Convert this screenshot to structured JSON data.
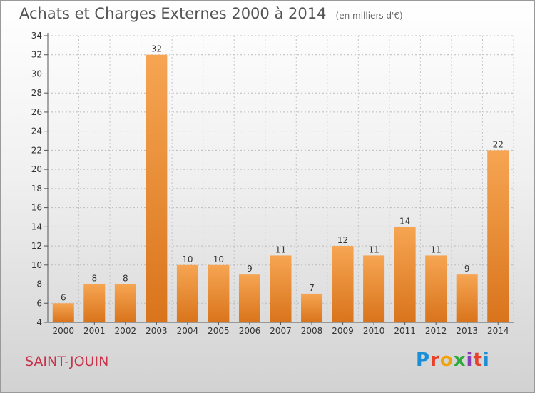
{
  "page": {
    "title": "Achats et Charges Externes 2000 à 2014",
    "subtitle": "(en milliers d'€)",
    "commune": "SAINT-JOUIN",
    "logo_text": "Proxiti",
    "logo_colors": [
      "#1b8fd6",
      "#e8402a",
      "#f0a20c",
      "#2eaa3b",
      "#8b3db5",
      "#e8402a",
      "#1b8fd6"
    ],
    "commune_color": "#c8324a",
    "bar_color_light": "#f6a552",
    "bar_color_dark": "#d9741c"
  },
  "chart_data": {
    "type": "bar",
    "title": "Achats et Charges Externes 2000 à 2014",
    "subtitle": "(en milliers d'€)",
    "categories": [
      "2000",
      "2001",
      "2002",
      "2003",
      "2004",
      "2005",
      "2006",
      "2007",
      "2008",
      "2009",
      "2010",
      "2011",
      "2012",
      "2013",
      "2014"
    ],
    "values": [
      6,
      8,
      8,
      32,
      10,
      10,
      9,
      11,
      7,
      12,
      11,
      14,
      11,
      9,
      22
    ],
    "data_labels": [
      "6",
      "8",
      "8",
      "32",
      "10",
      "10",
      "9",
      "11",
      "7",
      "12",
      "11",
      "14",
      "11",
      "9",
      "22"
    ],
    "ylim": [
      4,
      34
    ],
    "yticks": [
      4,
      6,
      8,
      10,
      12,
      14,
      16,
      18,
      20,
      22,
      24,
      26,
      28,
      30,
      32,
      34
    ],
    "ytick_labels": [
      "4",
      "6",
      "8",
      "10",
      "12",
      "14",
      "16",
      "18",
      "20",
      "22",
      "24",
      "26",
      "28",
      "30",
      "32",
      "34"
    ],
    "grid": true,
    "xlabel": "",
    "ylabel": ""
  }
}
